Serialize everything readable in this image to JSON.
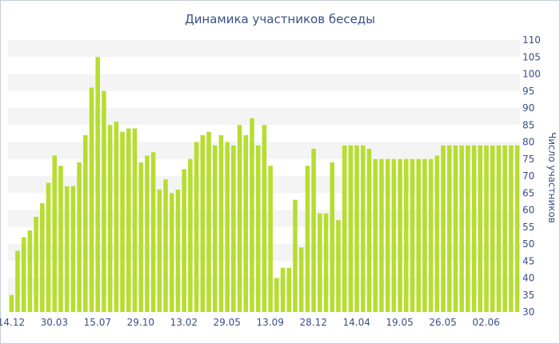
{
  "chart_data": {
    "type": "bar",
    "title": "Динамика участников беседы",
    "ylabel": "Число участников",
    "xlabel": "",
    "ylim": [
      30,
      110
    ],
    "y_ticks": [
      30,
      35,
      40,
      45,
      50,
      55,
      60,
      65,
      70,
      75,
      80,
      85,
      90,
      95,
      100,
      105,
      110
    ],
    "y_axis_side": "right",
    "x_tick_labels": [
      {
        "label": "14.12",
        "bar_index": 0
      },
      {
        "label": "30.03",
        "bar_index": 7
      },
      {
        "label": "15.07",
        "bar_index": 14
      },
      {
        "label": "29.10",
        "bar_index": 21
      },
      {
        "label": "13.02",
        "bar_index": 28
      },
      {
        "label": "29.05",
        "bar_index": 35
      },
      {
        "label": "13.09",
        "bar_index": 42
      },
      {
        "label": "28.12",
        "bar_index": 49
      },
      {
        "label": "14.04",
        "bar_index": 56
      },
      {
        "label": "19.05",
        "bar_index": 63
      },
      {
        "label": "26.05",
        "bar_index": 70
      },
      {
        "label": "02.06",
        "bar_index": 77
      }
    ],
    "values": [
      35,
      48,
      52,
      54,
      58,
      62,
      68,
      76,
      73,
      67,
      67,
      74,
      82,
      96,
      105,
      95,
      85,
      86,
      83,
      84,
      84,
      74,
      76,
      77,
      66,
      69,
      65,
      66,
      72,
      75,
      80,
      82,
      83,
      79,
      82,
      80,
      79,
      85,
      82,
      87,
      79,
      85,
      73,
      40,
      43,
      43,
      63,
      49,
      73,
      78,
      59,
      59,
      74,
      57,
      79,
      79,
      79,
      79,
      78,
      75,
      75,
      75,
      75,
      75,
      75,
      75,
      75,
      75,
      75,
      76,
      79,
      79,
      79,
      79,
      79,
      79,
      79,
      79,
      79,
      79,
      79,
      79,
      79
    ],
    "bar_color": "#b7dd2f",
    "band_color": "#f4f4f4",
    "grid": "alternating horizontal bands",
    "legend": "none"
  }
}
